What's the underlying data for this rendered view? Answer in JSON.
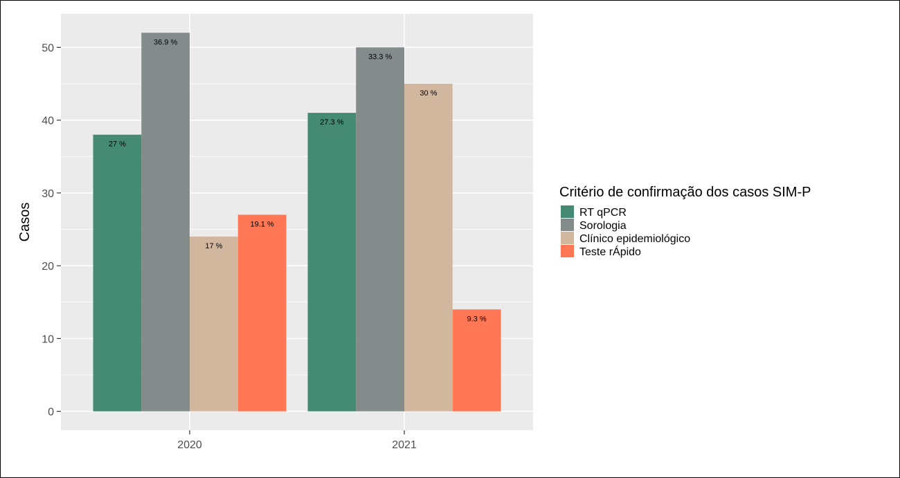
{
  "chart_data": {
    "type": "bar",
    "categories": [
      "2020",
      "2021"
    ],
    "series": [
      {
        "name": "RT qPCR",
        "values": [
          38,
          41
        ],
        "labels": [
          "27 %",
          "27.3 %"
        ],
        "color": "#458B74"
      },
      {
        "name": "Sorologia",
        "values": [
          52,
          50
        ],
        "labels": [
          "36.9 %",
          "33.3 %"
        ],
        "color": "#838B8B"
      },
      {
        "name": "Clínico epidemiológico",
        "values": [
          24,
          45
        ],
        "labels": [
          "17 %",
          "30 %"
        ],
        "color": "#D2B79F"
      },
      {
        "name": "Teste rÁpido",
        "values": [
          27,
          14
        ],
        "labels": [
          "19.1 %",
          "9.3 %"
        ],
        "color": "#FF7755"
      }
    ],
    "ylabel": "Casos",
    "xlabel": "",
    "ylim": [
      -2.6,
      54.6
    ],
    "yticks": [
      0,
      10,
      20,
      30,
      40,
      50
    ],
    "grid": true,
    "legend": {
      "title": "Critério de confirmação dos casos SIM-P",
      "position": "right"
    },
    "panel_background": "#EBEBEB"
  }
}
